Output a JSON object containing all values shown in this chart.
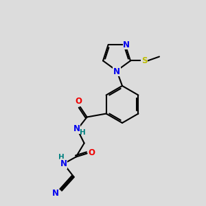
{
  "bg_color": "#dcdcdc",
  "line_color": "#000000",
  "bond_width": 1.5,
  "atom_colors": {
    "N": "#0000ee",
    "O": "#ee0000",
    "S": "#bbbb00",
    "H": "#008080",
    "C": "#000000"
  },
  "font_size": 8.5,
  "font_size_h": 7.5
}
